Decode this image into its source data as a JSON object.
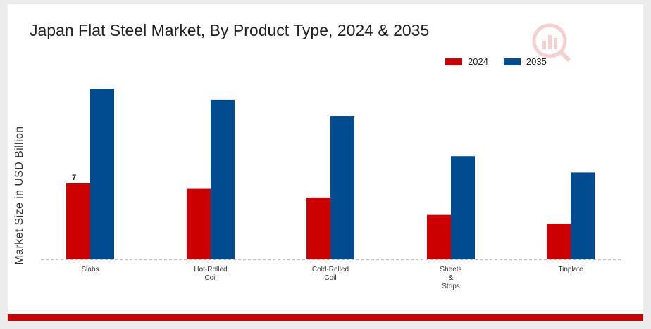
{
  "chart_data": {
    "type": "bar",
    "title": "Japan Flat Steel Market, By Product Type, 2024 & 2035",
    "xlabel": "",
    "ylabel": "Market Size in USD Billion",
    "categories": [
      "Slabs",
      "Hot-Rolled Coil",
      "Cold-Rolled Coil",
      "Sheets & Strips",
      "Tinplate"
    ],
    "category_lines": [
      [
        "Slabs"
      ],
      [
        "Hot-Rolled",
        "Coil"
      ],
      [
        "Cold-Rolled",
        "Coil"
      ],
      [
        "Sheets",
        "&",
        "Strips"
      ],
      [
        "Tinplate"
      ]
    ],
    "series": [
      {
        "name": "2024",
        "color": "#cc0000",
        "values": [
          7.0,
          6.5,
          5.7,
          4.1,
          3.3
        ]
      },
      {
        "name": "2035",
        "color": "#004a8f",
        "values": [
          15.7,
          14.7,
          13.2,
          9.5,
          8.0
        ]
      }
    ],
    "data_labels": [
      {
        "series": 0,
        "index": 0,
        "text": "7"
      }
    ],
    "ylim": [
      0,
      20
    ],
    "grid": false,
    "legend_position": "top-right"
  }
}
